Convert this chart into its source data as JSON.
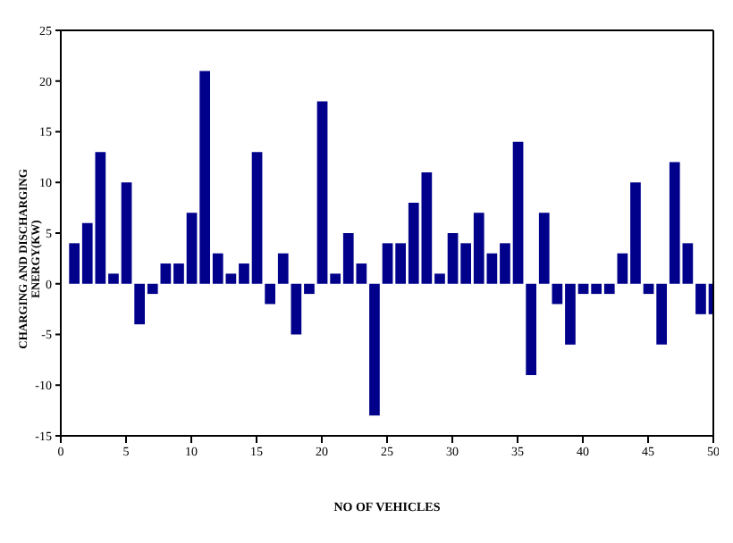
{
  "chart_data": {
    "type": "bar",
    "xlabel": "NO OF VEHICLES",
    "ylabel": "CHARGING AND DISCHARGING ENERGY(KW)",
    "x": [
      1,
      2,
      3,
      4,
      5,
      6,
      7,
      8,
      9,
      10,
      11,
      12,
      13,
      14,
      15,
      16,
      17,
      18,
      19,
      20,
      21,
      22,
      23,
      24,
      25,
      26,
      27,
      28,
      29,
      30,
      31,
      32,
      33,
      34,
      35,
      36,
      37,
      38,
      39,
      40,
      41,
      42,
      43,
      44,
      45,
      46,
      47,
      48,
      49,
      50
    ],
    "values": [
      4,
      6,
      13,
      1,
      10,
      -4,
      -1,
      2,
      2,
      7,
      21,
      3,
      1,
      2,
      13,
      -2,
      3,
      -5,
      -1,
      18,
      1,
      5,
      2,
      -13,
      4,
      4,
      8,
      11,
      1,
      5,
      4,
      7,
      3,
      4,
      14,
      -9,
      7,
      -2,
      -6,
      -1,
      -1,
      -1,
      3,
      10,
      -1,
      -6,
      12,
      4,
      -3,
      -3
    ],
    "color": "#00008b",
    "xlim": [
      0,
      50
    ],
    "xticks": [
      0,
      5,
      10,
      15,
      20,
      25,
      30,
      35,
      40,
      45,
      50
    ],
    "ylim": [
      -15,
      25
    ],
    "yticks": [
      -15,
      -10,
      -5,
      0,
      5,
      10,
      15,
      20,
      25
    ]
  }
}
